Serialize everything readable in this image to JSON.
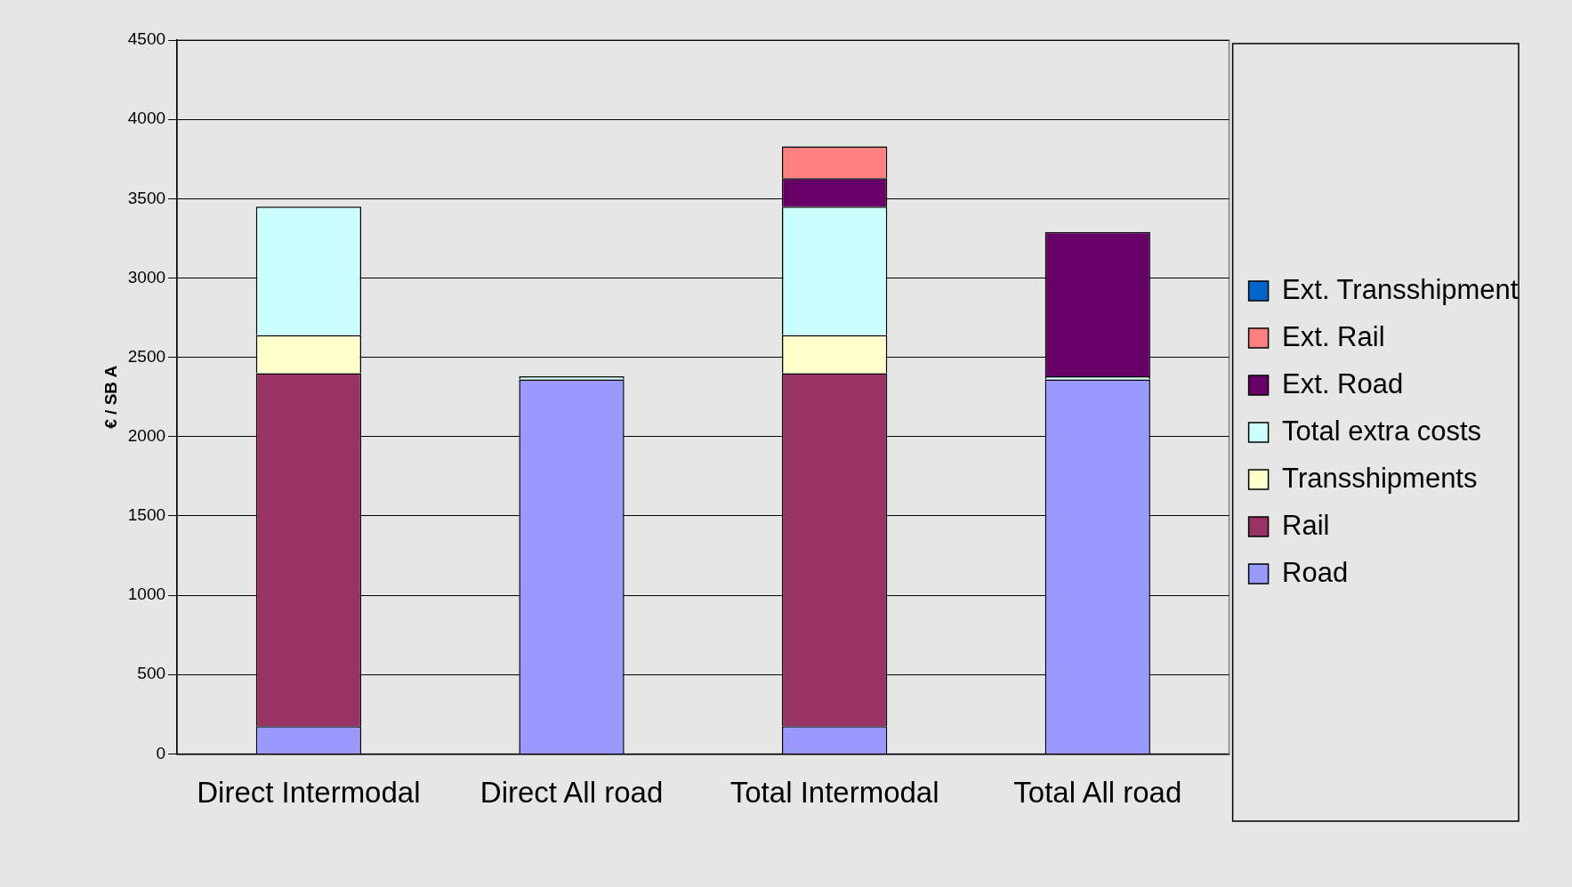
{
  "chart_data": {
    "type": "bar",
    "stacked": true,
    "ylabel": "€ / SB A",
    "categories": [
      "Direct Intermodal",
      "Direct All road",
      "Total Intermodal",
      "Total All road"
    ],
    "series": [
      {
        "name": "Road",
        "color": "#9999ff",
        "values": [
          175,
          2360,
          175,
          2360
        ]
      },
      {
        "name": "Rail",
        "color": "#993366",
        "values": [
          2225,
          null,
          2225,
          null
        ]
      },
      {
        "name": "Transshipments",
        "color": "#ffffcc",
        "values": [
          240,
          null,
          240,
          null
        ]
      },
      {
        "name": "Total extra costs",
        "color": "#ccffff",
        "values": [
          810,
          20,
          810,
          20
        ]
      },
      {
        "name": "Ext. Road",
        "color": "#660066",
        "values": [
          null,
          null,
          180,
          910
        ]
      },
      {
        "name": "Ext. Rail",
        "color": "#ff8080",
        "values": [
          null,
          null,
          200,
          null
        ]
      },
      {
        "name": "Ext. Transshipment",
        "color": "#0066cc",
        "values": [
          null,
          null,
          null,
          null
        ]
      }
    ],
    "ylim": [
      0,
      4500
    ],
    "yticks": [
      0,
      500,
      1000,
      1500,
      2000,
      2500,
      3000,
      3500,
      4000,
      4500
    ],
    "grid": "y",
    "legend": "right"
  }
}
